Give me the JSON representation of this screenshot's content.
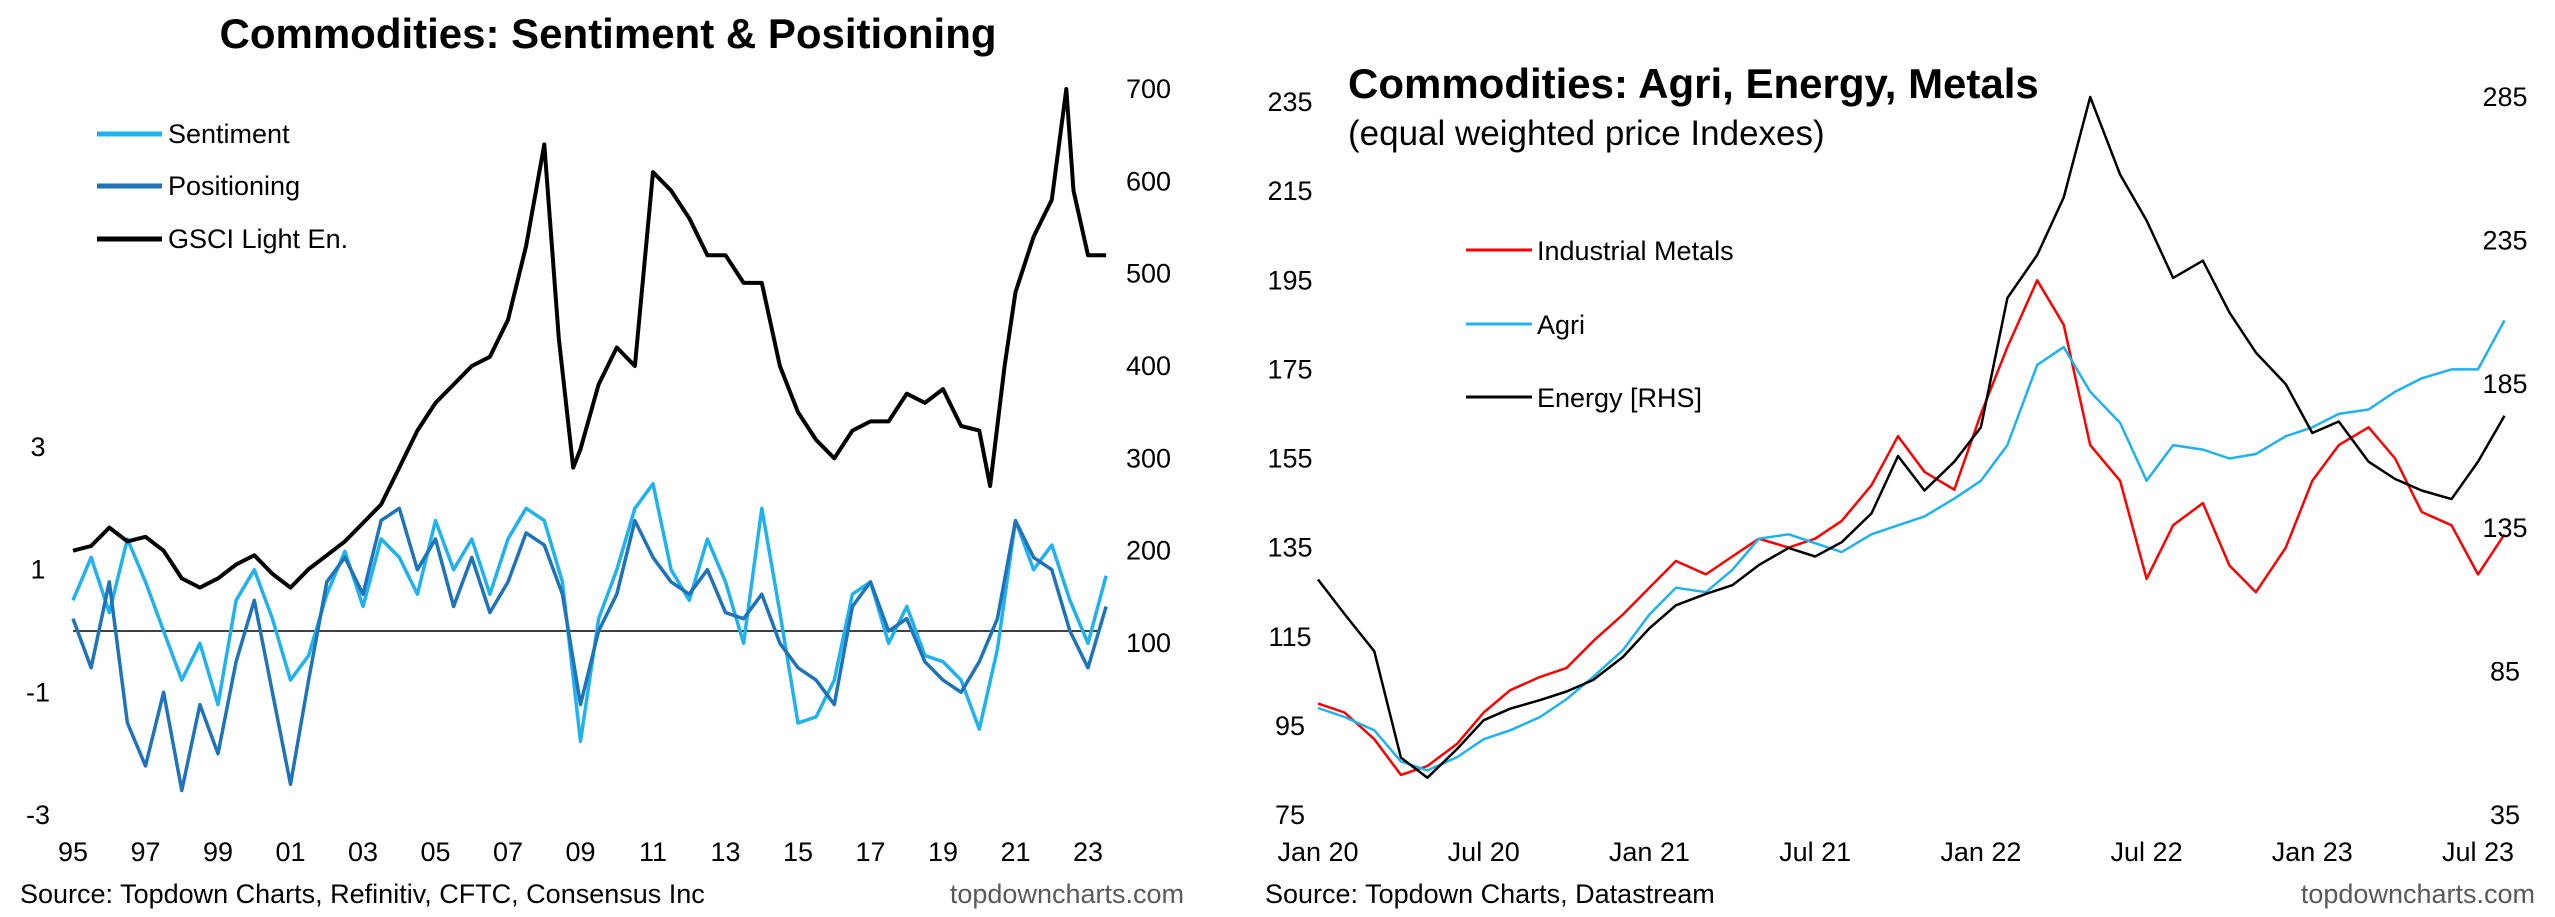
{
  "chart_data": [
    {
      "type": "line",
      "title": "Commodities: Sentiment & Positioning",
      "source": "Source: Topdown Charts, Refinitiv, CFTC, Consensus Inc",
      "brand": "topdowncharts.com",
      "x_tick_labels": [
        "95",
        "97",
        "99",
        "01",
        "03",
        "05",
        "07",
        "09",
        "11",
        "13",
        "15",
        "17",
        "19",
        "21",
        "23"
      ],
      "left_axis": {
        "tick_labels": [
          "3",
          "1",
          "-1",
          "-3"
        ],
        "ticks": [
          3,
          1,
          -1,
          -3
        ],
        "ylim": [
          -3,
          3
        ]
      },
      "right_axis": {
        "tick_labels": [
          "700",
          "600",
          "500",
          "400",
          "300",
          "200",
          "100"
        ],
        "ticks": [
          700,
          600,
          500,
          400,
          300,
          200,
          100
        ],
        "ylim": [
          -200,
          700
        ]
      },
      "zero_line": 0,
      "colors": {
        "sentiment": "#1fb2ee",
        "positioning": "#1e73b9",
        "gsci": "#000000"
      },
      "legend_placement": "top-left",
      "series": [
        {
          "name": "Sentiment",
          "axis": "left",
          "x": [
            1995.0,
            1995.5,
            1996.0,
            1996.5,
            1997.0,
            1997.5,
            1998.0,
            1998.5,
            1999.0,
            1999.5,
            2000.0,
            2000.5,
            2001.0,
            2001.5,
            2002.0,
            2002.5,
            2003.0,
            2003.5,
            2004.0,
            2004.5,
            2005.0,
            2005.5,
            2006.0,
            2006.5,
            2007.0,
            2007.5,
            2008.0,
            2008.5,
            2009.0,
            2009.5,
            2010.0,
            2010.5,
            2011.0,
            2011.5,
            2012.0,
            2012.5,
            2013.0,
            2013.5,
            2014.0,
            2014.5,
            2015.0,
            2015.5,
            2016.0,
            2016.5,
            2017.0,
            2017.5,
            2018.0,
            2018.5,
            2019.0,
            2019.5,
            2020.0,
            2020.5,
            2021.0,
            2021.5,
            2022.0,
            2022.5,
            2023.0,
            2023.5
          ],
          "y": [
            0.5,
            1.2,
            0.3,
            1.5,
            0.8,
            0.0,
            -0.8,
            -0.2,
            -1.2,
            0.5,
            1.0,
            0.2,
            -0.8,
            -0.4,
            0.6,
            1.3,
            0.4,
            1.5,
            1.2,
            0.6,
            1.8,
            1.0,
            1.5,
            0.6,
            1.5,
            2.0,
            1.8,
            0.8,
            -1.8,
            0.2,
            1.0,
            2.0,
            2.4,
            1.0,
            0.5,
            1.5,
            0.8,
            -0.2,
            2.0,
            0.3,
            -1.5,
            -1.4,
            -0.8,
            0.6,
            0.8,
            -0.2,
            0.4,
            -0.4,
            -0.5,
            -0.8,
            -1.6,
            -0.3,
            1.8,
            1.0,
            1.4,
            0.5,
            -0.2,
            0.9
          ]
        },
        {
          "name": "Positioning",
          "axis": "left",
          "x": [
            1995.0,
            1995.5,
            1996.0,
            1996.5,
            1997.0,
            1997.5,
            1998.0,
            1998.5,
            1999.0,
            1999.5,
            2000.0,
            2000.5,
            2001.0,
            2001.5,
            2002.0,
            2002.5,
            2003.0,
            2003.5,
            2004.0,
            2004.5,
            2005.0,
            2005.5,
            2006.0,
            2006.5,
            2007.0,
            2007.5,
            2008.0,
            2008.5,
            2009.0,
            2009.5,
            2010.0,
            2010.5,
            2011.0,
            2011.5,
            2012.0,
            2012.5,
            2013.0,
            2013.5,
            2014.0,
            2014.5,
            2015.0,
            2015.5,
            2016.0,
            2016.5,
            2017.0,
            2017.5,
            2018.0,
            2018.5,
            2019.0,
            2019.5,
            2020.0,
            2020.5,
            2021.0,
            2021.5,
            2022.0,
            2022.5,
            2023.0,
            2023.5
          ],
          "y": [
            0.2,
            -0.6,
            0.8,
            -1.5,
            -2.2,
            -1.0,
            -2.6,
            -1.2,
            -2.0,
            -0.5,
            0.5,
            -1.0,
            -2.5,
            -0.8,
            0.8,
            1.2,
            0.6,
            1.8,
            2.0,
            1.0,
            1.5,
            0.4,
            1.2,
            0.3,
            0.8,
            1.6,
            1.4,
            0.6,
            -1.2,
            0.0,
            0.6,
            1.8,
            1.2,
            0.8,
            0.6,
            1.0,
            0.3,
            0.2,
            0.6,
            -0.2,
            -0.6,
            -0.8,
            -1.2,
            0.4,
            0.8,
            0.0,
            0.2,
            -0.5,
            -0.8,
            -1.0,
            -0.5,
            0.2,
            1.8,
            1.2,
            1.0,
            0.0,
            -0.6,
            0.4
          ]
        },
        {
          "name": "GSCI Light En.",
          "axis": "right",
          "x": [
            1995.0,
            1995.5,
            1996.0,
            1996.5,
            1997.0,
            1997.5,
            1998.0,
            1998.5,
            1999.0,
            1999.5,
            2000.0,
            2000.5,
            2001.0,
            2001.5,
            2002.0,
            2002.5,
            2003.0,
            2003.5,
            2004.0,
            2004.5,
            2005.0,
            2005.5,
            2006.0,
            2006.5,
            2007.0,
            2007.5,
            2008.0,
            2008.4,
            2008.8,
            2009.0,
            2009.5,
            2010.0,
            2010.5,
            2011.0,
            2011.5,
            2012.0,
            2012.5,
            2013.0,
            2013.5,
            2014.0,
            2014.5,
            2015.0,
            2015.5,
            2016.0,
            2016.5,
            2017.0,
            2017.5,
            2018.0,
            2018.5,
            2019.0,
            2019.5,
            2020.0,
            2020.3,
            2020.7,
            2021.0,
            2021.5,
            2022.0,
            2022.4,
            2022.6,
            2023.0,
            2023.5
          ],
          "y": [
            200,
            205,
            225,
            210,
            215,
            200,
            170,
            160,
            170,
            185,
            195,
            175,
            160,
            180,
            195,
            210,
            230,
            250,
            290,
            330,
            360,
            380,
            400,
            410,
            450,
            530,
            640,
            430,
            290,
            310,
            380,
            420,
            400,
            610,
            590,
            560,
            520,
            520,
            490,
            490,
            400,
            350,
            320,
            300,
            330,
            340,
            340,
            370,
            360,
            375,
            335,
            330,
            270,
            400,
            480,
            540,
            580,
            700,
            590,
            520,
            520
          ]
        }
      ]
    },
    {
      "type": "line",
      "title": "Commodities: Agri, Energy, Metals",
      "subtitle": "(equal weighted price Indexes)",
      "source": "Source: Topdown Charts, Datastream",
      "brand": "topdowncharts.com",
      "x_tick_labels": [
        "Jan 20",
        "Jul 20",
        "Jan 21",
        "Jul 21",
        "Jan 22",
        "Jul 22",
        "Jan 23",
        "Jul 23"
      ],
      "x_ticks": [
        2020.0,
        2020.5,
        2021.0,
        2021.5,
        2022.0,
        2022.5,
        2023.0,
        2023.5
      ],
      "left_axis": {
        "tick_labels": [
          "235",
          "215",
          "195",
          "175",
          "155",
          "135",
          "115",
          "95",
          "75"
        ],
        "ticks": [
          235,
          215,
          195,
          175,
          155,
          135,
          115,
          95,
          75
        ],
        "ylim": [
          75,
          235
        ]
      },
      "right_axis": {
        "tick_labels": [
          "285",
          "235",
          "185",
          "135",
          "85",
          "35"
        ],
        "ticks": [
          285,
          235,
          185,
          135,
          85,
          35
        ],
        "ylim": [
          35,
          285
        ]
      },
      "colors": {
        "industrial_metals": "#ff0000",
        "agri": "#1fb2ee",
        "energy": "#000000"
      },
      "legend_placement": "top-left",
      "series": [
        {
          "name": "Industrial Metals",
          "axis": "left",
          "x": [
            2020.0,
            2020.08,
            2020.17,
            2020.25,
            2020.33,
            2020.42,
            2020.5,
            2020.58,
            2020.67,
            2020.75,
            2020.83,
            2020.92,
            2021.0,
            2021.08,
            2021.17,
            2021.25,
            2021.33,
            2021.42,
            2021.5,
            2021.58,
            2021.67,
            2021.75,
            2021.83,
            2021.92,
            2022.0,
            2022.08,
            2022.17,
            2022.25,
            2022.33,
            2022.42,
            2022.5,
            2022.58,
            2022.67,
            2022.75,
            2022.83,
            2022.92,
            2023.0,
            2023.08,
            2023.17,
            2023.25,
            2023.33,
            2023.42,
            2023.5,
            2023.58
          ],
          "y": [
            100,
            98,
            92,
            84,
            86,
            91,
            98,
            103,
            106,
            108,
            114,
            120,
            126,
            132,
            129,
            133,
            137,
            135,
            137,
            141,
            149,
            160,
            152,
            148,
            165,
            180,
            195,
            185,
            158,
            150,
            128,
            140,
            145,
            131,
            125,
            135,
            150,
            158,
            162,
            155,
            143,
            140,
            129,
            138
          ]
        },
        {
          "name": "Agri",
          "axis": "left",
          "x": [
            2020.0,
            2020.08,
            2020.17,
            2020.25,
            2020.33,
            2020.42,
            2020.5,
            2020.58,
            2020.67,
            2020.75,
            2020.83,
            2020.92,
            2021.0,
            2021.08,
            2021.17,
            2021.25,
            2021.33,
            2021.42,
            2021.5,
            2021.58,
            2021.67,
            2021.75,
            2021.83,
            2021.92,
            2022.0,
            2022.08,
            2022.17,
            2022.25,
            2022.33,
            2022.42,
            2022.5,
            2022.58,
            2022.67,
            2022.75,
            2022.83,
            2022.92,
            2023.0,
            2023.08,
            2023.17,
            2023.25,
            2023.33,
            2023.42,
            2023.5,
            2023.58
          ],
          "y": [
            99,
            97,
            94,
            87,
            85,
            88,
            92,
            94,
            97,
            101,
            106,
            112,
            120,
            126,
            125,
            130,
            137,
            138,
            136,
            134,
            138,
            140,
            142,
            146,
            150,
            158,
            176,
            180,
            170,
            163,
            150,
            158,
            157,
            155,
            156,
            160,
            162,
            165,
            166,
            170,
            173,
            175,
            175,
            186
          ]
        },
        {
          "name": "Energy [RHS]",
          "axis": "right",
          "x": [
            2020.0,
            2020.08,
            2020.17,
            2020.25,
            2020.33,
            2020.42,
            2020.5,
            2020.58,
            2020.67,
            2020.75,
            2020.83,
            2020.92,
            2021.0,
            2021.08,
            2021.17,
            2021.25,
            2021.33,
            2021.42,
            2021.5,
            2021.58,
            2021.67,
            2021.75,
            2021.83,
            2021.92,
            2022.0,
            2022.08,
            2022.17,
            2022.25,
            2022.33,
            2022.42,
            2022.5,
            2022.58,
            2022.67,
            2022.75,
            2022.83,
            2022.92,
            2023.0,
            2023.08,
            2023.17,
            2023.25,
            2023.33,
            2023.42,
            2023.5,
            2023.58
          ],
          "y": [
            117,
            105,
            92,
            55,
            48,
            58,
            68,
            72,
            75,
            78,
            82,
            90,
            100,
            108,
            112,
            115,
            122,
            128,
            125,
            130,
            140,
            160,
            148,
            158,
            170,
            215,
            230,
            250,
            285,
            258,
            242,
            222,
            228,
            210,
            196,
            185,
            168,
            172,
            158,
            152,
            148,
            145,
            158,
            174
          ]
        }
      ]
    }
  ]
}
